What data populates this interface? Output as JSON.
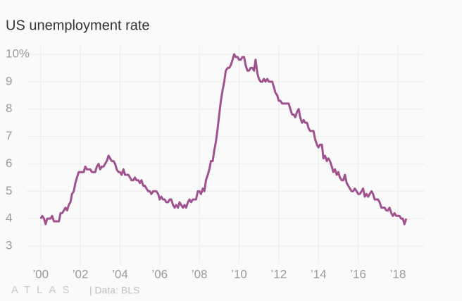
{
  "chart_data": {
    "type": "line",
    "title": "US unemployment rate",
    "source": "| Data: BLS",
    "brand": "ATLAS",
    "color": "#a0528f",
    "xlim": [
      1999.3,
      2019.35
    ],
    "ylim": [
      2.35,
      10.3
    ],
    "grid": true,
    "xticks": [
      {
        "value": 2000,
        "label": "’00"
      },
      {
        "value": 2002,
        "label": "’02"
      },
      {
        "value": 2004,
        "label": "’04"
      },
      {
        "value": 2006,
        "label": "’06"
      },
      {
        "value": 2008,
        "label": "’08"
      },
      {
        "value": 2010,
        "label": "’10"
      },
      {
        "value": 2012,
        "label": "’12"
      },
      {
        "value": 2014,
        "label": "’14"
      },
      {
        "value": 2016,
        "label": "’16"
      },
      {
        "value": 2018,
        "label": "’18"
      }
    ],
    "yticks": [
      3,
      4,
      5,
      6,
      7,
      8,
      9,
      {
        "value": 10,
        "label": "10%"
      }
    ],
    "x": [
      2000,
      2000.08,
      2000.17,
      2000.25,
      2000.33,
      2000.42,
      2000.5,
      2000.58,
      2000.67,
      2000.75,
      2000.83,
      2000.92,
      2001,
      2001.08,
      2001.17,
      2001.25,
      2001.33,
      2001.42,
      2001.5,
      2001.58,
      2001.67,
      2001.75,
      2001.83,
      2001.92,
      2002,
      2002.08,
      2002.17,
      2002.25,
      2002.33,
      2002.42,
      2002.5,
      2002.58,
      2002.67,
      2002.75,
      2002.83,
      2002.92,
      2003,
      2003.08,
      2003.17,
      2003.25,
      2003.33,
      2003.42,
      2003.5,
      2003.58,
      2003.67,
      2003.75,
      2003.83,
      2003.92,
      2004,
      2004.08,
      2004.17,
      2004.25,
      2004.33,
      2004.42,
      2004.5,
      2004.58,
      2004.67,
      2004.75,
      2004.83,
      2004.92,
      2005,
      2005.08,
      2005.17,
      2005.25,
      2005.33,
      2005.42,
      2005.5,
      2005.58,
      2005.67,
      2005.75,
      2005.83,
      2005.92,
      2006,
      2006.08,
      2006.17,
      2006.25,
      2006.33,
      2006.42,
      2006.5,
      2006.58,
      2006.67,
      2006.75,
      2006.83,
      2006.92,
      2007,
      2007.08,
      2007.17,
      2007.25,
      2007.33,
      2007.42,
      2007.5,
      2007.58,
      2007.67,
      2007.75,
      2007.83,
      2007.92,
      2008,
      2008.08,
      2008.17,
      2008.25,
      2008.33,
      2008.42,
      2008.5,
      2008.58,
      2008.67,
      2008.75,
      2008.83,
      2008.92,
      2009,
      2009.08,
      2009.17,
      2009.25,
      2009.33,
      2009.42,
      2009.5,
      2009.58,
      2009.67,
      2009.75,
      2009.83,
      2009.92,
      2010,
      2010.08,
      2010.17,
      2010.25,
      2010.33,
      2010.42,
      2010.5,
      2010.58,
      2010.67,
      2010.75,
      2010.83,
      2010.92,
      2011,
      2011.08,
      2011.17,
      2011.25,
      2011.33,
      2011.42,
      2011.5,
      2011.58,
      2011.67,
      2011.75,
      2011.83,
      2011.92,
      2012,
      2012.08,
      2012.17,
      2012.25,
      2012.33,
      2012.42,
      2012.5,
      2012.58,
      2012.67,
      2012.75,
      2012.83,
      2012.92,
      2013,
      2013.08,
      2013.17,
      2013.25,
      2013.33,
      2013.42,
      2013.5,
      2013.58,
      2013.67,
      2013.75,
      2013.83,
      2013.92,
      2014,
      2014.08,
      2014.17,
      2014.25,
      2014.33,
      2014.42,
      2014.5,
      2014.58,
      2014.67,
      2014.75,
      2014.83,
      2014.92,
      2015,
      2015.08,
      2015.17,
      2015.25,
      2015.33,
      2015.42,
      2015.5,
      2015.58,
      2015.67,
      2015.75,
      2015.83,
      2015.92,
      2016,
      2016.08,
      2016.17,
      2016.25,
      2016.33,
      2016.42,
      2016.5,
      2016.58,
      2016.67,
      2016.75,
      2016.83,
      2016.92,
      2017,
      2017.08,
      2017.17,
      2017.25,
      2017.33,
      2017.42,
      2017.5,
      2017.58,
      2017.67,
      2017.75,
      2017.83,
      2017.92,
      2018,
      2018.08,
      2018.17,
      2018.25,
      2018.33,
      2018.42
    ],
    "values": [
      4.0,
      4.1,
      4.0,
      3.8,
      4.0,
      4.0,
      4.0,
      4.1,
      3.9,
      3.9,
      3.9,
      3.9,
      4.2,
      4.2,
      4.3,
      4.4,
      4.3,
      4.5,
      4.6,
      4.9,
      5.0,
      5.3,
      5.5,
      5.7,
      5.7,
      5.7,
      5.7,
      5.9,
      5.8,
      5.8,
      5.8,
      5.7,
      5.7,
      5.7,
      5.9,
      6.0,
      5.8,
      5.9,
      5.9,
      6.0,
      6.1,
      6.3,
      6.2,
      6.1,
      6.1,
      6.0,
      5.8,
      5.7,
      5.7,
      5.6,
      5.8,
      5.6,
      5.6,
      5.6,
      5.5,
      5.4,
      5.4,
      5.5,
      5.4,
      5.4,
      5.3,
      5.4,
      5.2,
      5.2,
      5.1,
      5.0,
      5.0,
      4.9,
      5.0,
      5.0,
      5.0,
      4.9,
      4.7,
      4.8,
      4.7,
      4.7,
      4.6,
      4.6,
      4.7,
      4.7,
      4.5,
      4.4,
      4.5,
      4.4,
      4.6,
      4.5,
      4.4,
      4.5,
      4.4,
      4.6,
      4.7,
      4.6,
      4.7,
      4.7,
      4.7,
      5.0,
      5.0,
      4.9,
      5.1,
      5.0,
      5.4,
      5.6,
      5.8,
      6.1,
      6.1,
      6.5,
      6.8,
      7.3,
      7.8,
      8.3,
      8.7,
      9.0,
      9.4,
      9.5,
      9.5,
      9.6,
      9.8,
      10.0,
      9.9,
      9.9,
      9.8,
      9.8,
      9.9,
      9.9,
      9.6,
      9.4,
      9.4,
      9.5,
      9.5,
      9.4,
      9.8,
      9.3,
      9.1,
      9.0,
      9.0,
      9.1,
      9.0,
      9.1,
      9.0,
      9.0,
      9.0,
      8.8,
      8.6,
      8.5,
      8.3,
      8.3,
      8.2,
      8.2,
      8.2,
      8.2,
      8.2,
      8.0,
      7.8,
      7.8,
      7.7,
      7.9,
      8.0,
      7.7,
      7.5,
      7.6,
      7.5,
      7.5,
      7.3,
      7.2,
      7.2,
      7.2,
      6.9,
      6.7,
      6.6,
      6.7,
      6.7,
      6.2,
      6.3,
      6.1,
      6.2,
      6.1,
      5.9,
      5.7,
      5.8,
      5.6,
      5.7,
      5.5,
      5.4,
      5.4,
      5.6,
      5.3,
      5.2,
      5.1,
      5.0,
      5.0,
      5.1,
      5.0,
      4.9,
      4.9,
      5.0,
      5.1,
      4.8,
      4.9,
      4.8,
      4.9,
      5.0,
      4.9,
      4.7,
      4.7,
      4.7,
      4.6,
      4.4,
      4.4,
      4.4,
      4.3,
      4.3,
      4.4,
      4.2,
      4.1,
      4.2,
      4.1,
      4.1,
      4.1,
      4.0,
      4.0,
      3.8,
      4.0
    ]
  }
}
